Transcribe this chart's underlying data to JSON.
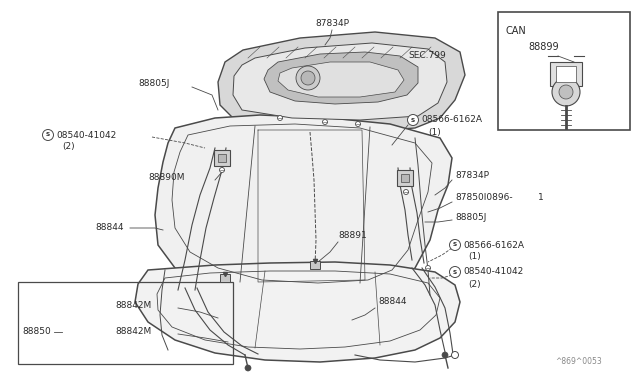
{
  "bg_color": "#ffffff",
  "line_color": "#4a4a4a",
  "text_color": "#2a2a2a",
  "watermark": "^869^0053",
  "inset_label": "CAN",
  "inset_part": "88899",
  "fig_w": 6.4,
  "fig_h": 3.72,
  "dpi": 100
}
